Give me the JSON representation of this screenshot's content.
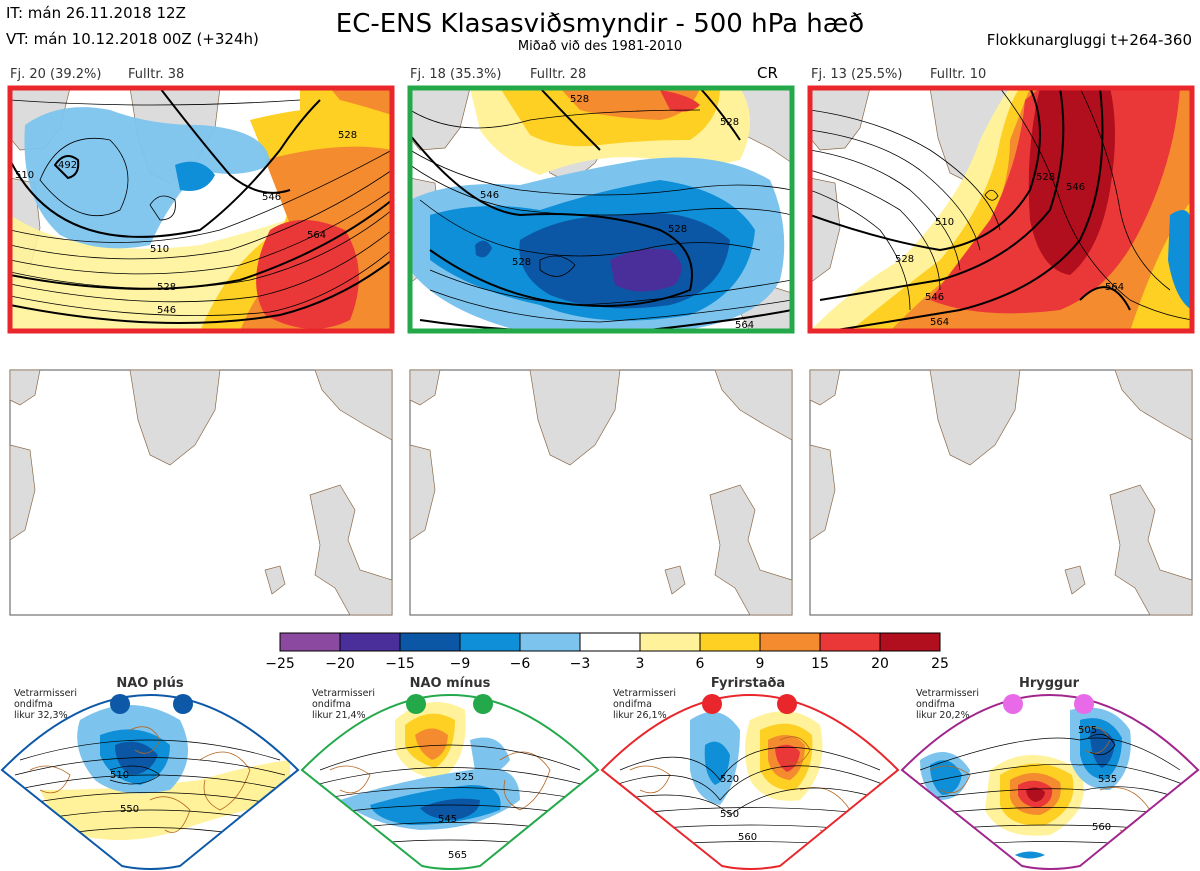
{
  "header": {
    "it_line": "IT: mán 26.11.2018 12Z",
    "vt_line": "VT: mán 10.12.2018 00Z  (+324h)",
    "title": "EC-ENS Klasasviðsmyndir - 500 hPa hæð",
    "subtitle": "Miðað við des 1981-2010",
    "window": "Flokkunargluggi t+264-360"
  },
  "clusters": [
    {
      "label": "Fj. 20 (39.2%)",
      "rep": "Fulltr. 38",
      "tag": "",
      "frame_color": "#e8262b",
      "contour_labels": [
        "492",
        "510",
        "528",
        "546",
        "564",
        "546",
        "528",
        "510"
      ]
    },
    {
      "label": "Fj. 18 (35.3%)",
      "rep": "Fulltr. 28",
      "tag": "CR",
      "frame_color": "#23a94a",
      "contour_labels": [
        "528",
        "528",
        "546",
        "528",
        "528",
        "564"
      ]
    },
    {
      "label": "Fj. 13 (25.5%)",
      "rep": "Fulltr. 10",
      "tag": "",
      "frame_color": "#e8262b",
      "contour_labels": [
        "510",
        "528",
        "546",
        "564",
        "546",
        "528",
        "564"
      ]
    }
  ],
  "colorbar": {
    "colors": [
      "#8b4aa0",
      "#4a2f9a",
      "#0b57a6",
      "#0f8fd7",
      "#7cc4ee",
      "#ffffff",
      "#fff29a",
      "#fdd023",
      "#f58b2f",
      "#ea3838",
      "#b10e1e"
    ],
    "ticks": [
      "−25",
      "−20",
      "−15",
      "−9",
      "−6",
      "−3",
      "3",
      "6",
      "9",
      "15",
      "20",
      "25"
    ]
  },
  "regimes": [
    {
      "name": "NAO plús",
      "note": "Vetrarmisseri\nondifma\nlikur 32,3%",
      "color": "#0d58a7",
      "labels": [
        "510",
        "550"
      ]
    },
    {
      "name": "NAO mínus",
      "note": "Vetrarmisseri\nondifma\nlikur 21,4%",
      "color": "#23a94a",
      "labels": [
        "525",
        "545",
        "565"
      ]
    },
    {
      "name": "Fyrirstaða",
      "note": "Vetrarmisseri\nondifma\nlikur 26,1%",
      "color": "#e8262b",
      "labels": [
        "520",
        "550",
        "560"
      ]
    },
    {
      "name": "Hryggur",
      "note": "Vetrarmisseri\nondifma\nlikur 20,2%",
      "color": "#a0268e",
      "dot_color": "#e86ae8",
      "labels": [
        "505",
        "535",
        "560"
      ]
    }
  ]
}
